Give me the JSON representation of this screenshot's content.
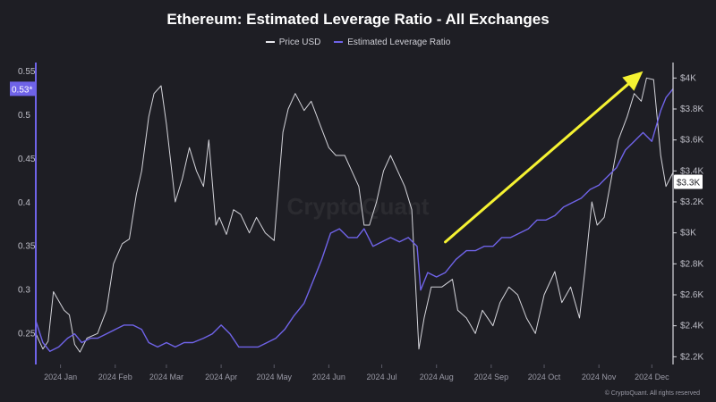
{
  "title": "Ethereum: Estimated Leverage Ratio - All Exchanges",
  "legend": {
    "price_label": "Price USD",
    "elr_label": "Estimated Leverage Ratio"
  },
  "colors": {
    "background": "#1e1e24",
    "price": "#e8e8ee",
    "elr": "#6f63e8",
    "arrow": "#f5f232",
    "grid": "#2c2c34"
  },
  "left_badge": "0.53*",
  "right_badge": "$3.3K",
  "watermark": "CryptoQuant",
  "copyright": "© CryptoQuant. All rights reserved",
  "chart_data": {
    "type": "line",
    "title": "Ethereum: Estimated Leverage Ratio - All Exchanges",
    "x_tick_labels": [
      "2024 Jan",
      "2024 Feb",
      "2024 Mar",
      "2024 Apr",
      "2024 May",
      "2024 Jun",
      "2024 Jul",
      "2024 Aug",
      "2024 Sep",
      "2024 Oct",
      "2024 Nov",
      "2024 Dec"
    ],
    "y_left": {
      "ticks": [
        "0.25",
        "0.3",
        "0.35",
        "0.4",
        "0.45",
        "0.5",
        "0.55"
      ],
      "range": [
        0.215,
        0.56
      ]
    },
    "y_right": {
      "ticks": [
        "$2.2K",
        "$2.4K",
        "$2.6K",
        "$2.8K",
        "$3K",
        "$3.2K",
        "$3.4K",
        "$3.6K",
        "$3.8K",
        "$4K"
      ],
      "range": [
        2150,
        4100
      ]
    },
    "x_range": [
      "2024-01-01",
      "2024-12-27"
    ],
    "series": [
      {
        "name": "Price USD",
        "axis": "right",
        "x": [
          "2024-01-01",
          "2024-01-05",
          "2024-01-08",
          "2024-01-11",
          "2024-01-13",
          "2024-01-17",
          "2024-01-20",
          "2024-01-23",
          "2024-01-26",
          "2024-01-30",
          "2024-02-05",
          "2024-02-10",
          "2024-02-14",
          "2024-02-19",
          "2024-02-23",
          "2024-02-27",
          "2024-03-01",
          "2024-03-05",
          "2024-03-08",
          "2024-03-12",
          "2024-03-15",
          "2024-03-20",
          "2024-03-24",
          "2024-03-28",
          "2024-04-01",
          "2024-04-05",
          "2024-04-08",
          "2024-04-12",
          "2024-04-14",
          "2024-04-18",
          "2024-04-22",
          "2024-04-26",
          "2024-05-01",
          "2024-05-05",
          "2024-05-10",
          "2024-05-15",
          "2024-05-20",
          "2024-05-23",
          "2024-05-27",
          "2024-06-01",
          "2024-06-05",
          "2024-06-10",
          "2024-06-15",
          "2024-06-19",
          "2024-06-24",
          "2024-06-28",
          "2024-07-02",
          "2024-07-05",
          "2024-07-08",
          "2024-07-12",
          "2024-07-16",
          "2024-07-20",
          "2024-07-24",
          "2024-07-28",
          "2024-08-01",
          "2024-08-05",
          "2024-08-08",
          "2024-08-12",
          "2024-08-18",
          "2024-08-24",
          "2024-08-27",
          "2024-09-01",
          "2024-09-06",
          "2024-09-10",
          "2024-09-16",
          "2024-09-20",
          "2024-09-25",
          "2024-09-30",
          "2024-10-05",
          "2024-10-10",
          "2024-10-15",
          "2024-10-21",
          "2024-10-25",
          "2024-10-30",
          "2024-11-04",
          "2024-11-07",
          "2024-11-11",
          "2024-11-14",
          "2024-11-18",
          "2024-11-22",
          "2024-11-26",
          "2024-12-01",
          "2024-12-05",
          "2024-12-09",
          "2024-12-12",
          "2024-12-16",
          "2024-12-20",
          "2024-12-23",
          "2024-12-27"
        ],
        "y": [
          2350,
          2250,
          2300,
          2620,
          2580,
          2500,
          2470,
          2280,
          2230,
          2320,
          2350,
          2500,
          2800,
          2930,
          2960,
          3250,
          3400,
          3750,
          3900,
          3950,
          3700,
          3200,
          3350,
          3550,
          3400,
          3300,
          3600,
          3050,
          3100,
          2990,
          3150,
          3120,
          3000,
          3100,
          3000,
          2950,
          3650,
          3800,
          3900,
          3790,
          3850,
          3700,
          3550,
          3500,
          3500,
          3400,
          3300,
          3050,
          3050,
          3200,
          3400,
          3500,
          3400,
          3300,
          3150,
          2250,
          2450,
          2650,
          2650,
          2700,
          2500,
          2450,
          2350,
          2500,
          2400,
          2550,
          2650,
          2600,
          2450,
          2350,
          2600,
          2750,
          2550,
          2650,
          2450,
          2750,
          3200,
          3050,
          3100,
          3350,
          3600,
          3750,
          3900,
          3850,
          4000,
          3990,
          3500,
          3300,
          3390
        ]
      },
      {
        "name": "Estimated Leverage Ratio",
        "axis": "left",
        "x": [
          "2024-01-01",
          "2024-01-05",
          "2024-01-09",
          "2024-01-14",
          "2024-01-19",
          "2024-01-23",
          "2024-01-27",
          "2024-02-01",
          "2024-02-05",
          "2024-02-10",
          "2024-02-15",
          "2024-02-20",
          "2024-02-25",
          "2024-03-01",
          "2024-03-05",
          "2024-03-10",
          "2024-03-15",
          "2024-03-20",
          "2024-03-25",
          "2024-03-30",
          "2024-04-05",
          "2024-04-10",
          "2024-04-15",
          "2024-04-20",
          "2024-04-25",
          "2024-05-01",
          "2024-05-06",
          "2024-05-11",
          "2024-05-16",
          "2024-05-21",
          "2024-05-26",
          "2024-06-01",
          "2024-06-06",
          "2024-06-11",
          "2024-06-16",
          "2024-06-21",
          "2024-06-26",
          "2024-07-01",
          "2024-07-05",
          "2024-07-10",
          "2024-07-15",
          "2024-07-20",
          "2024-07-25",
          "2024-07-30",
          "2024-08-04",
          "2024-08-06",
          "2024-08-10",
          "2024-08-15",
          "2024-08-20",
          "2024-08-26",
          "2024-09-01",
          "2024-09-06",
          "2024-09-11",
          "2024-09-16",
          "2024-09-21",
          "2024-09-26",
          "2024-10-01",
          "2024-10-06",
          "2024-10-11",
          "2024-10-16",
          "2024-10-21",
          "2024-10-26",
          "2024-10-31",
          "2024-11-05",
          "2024-11-10",
          "2024-11-15",
          "2024-11-20",
          "2024-11-25",
          "2024-11-30",
          "2024-12-05",
          "2024-12-10",
          "2024-12-15",
          "2024-12-20",
          "2024-12-23",
          "2024-12-27"
        ],
        "y": [
          0.265,
          0.24,
          0.23,
          0.235,
          0.245,
          0.25,
          0.24,
          0.245,
          0.245,
          0.25,
          0.255,
          0.26,
          0.26,
          0.255,
          0.24,
          0.235,
          0.24,
          0.235,
          0.24,
          0.24,
          0.245,
          0.25,
          0.26,
          0.25,
          0.235,
          0.235,
          0.235,
          0.24,
          0.245,
          0.255,
          0.27,
          0.285,
          0.31,
          0.335,
          0.365,
          0.37,
          0.36,
          0.36,
          0.37,
          0.35,
          0.355,
          0.36,
          0.355,
          0.36,
          0.35,
          0.3,
          0.32,
          0.315,
          0.32,
          0.335,
          0.345,
          0.345,
          0.35,
          0.35,
          0.36,
          0.36,
          0.365,
          0.37,
          0.38,
          0.38,
          0.385,
          0.395,
          0.4,
          0.405,
          0.415,
          0.42,
          0.43,
          0.44,
          0.46,
          0.47,
          0.48,
          0.47,
          0.505,
          0.52,
          0.53
        ]
      }
    ],
    "annotation": {
      "type": "arrow",
      "color": "#f5f232",
      "from": [
        "2024-08-20",
        0.355
      ],
      "to": [
        "2024-12-10",
        0.55
      ]
    },
    "grid": false,
    "legend_position": "top-center"
  }
}
